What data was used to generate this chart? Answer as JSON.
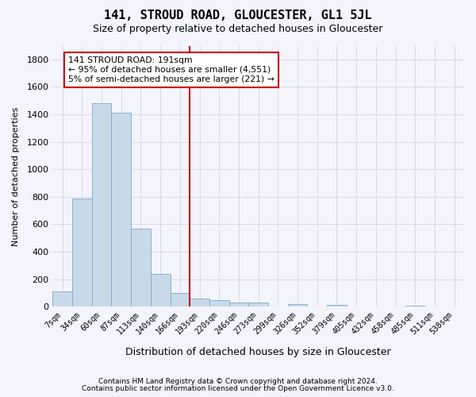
{
  "title": "141, STROUD ROAD, GLOUCESTER, GL1 5JL",
  "subtitle": "Size of property relative to detached houses in Gloucester",
  "xlabel": "Distribution of detached houses by size in Gloucester",
  "ylabel": "Number of detached properties",
  "bin_labels": [
    "7sqm",
    "34sqm",
    "60sqm",
    "87sqm",
    "113sqm",
    "140sqm",
    "166sqm",
    "193sqm",
    "220sqm",
    "246sqm",
    "273sqm",
    "299sqm",
    "326sqm",
    "352sqm",
    "379sqm",
    "405sqm",
    "432sqm",
    "458sqm",
    "485sqm",
    "511sqm",
    "538sqm"
  ],
  "bar_heights": [
    110,
    790,
    1480,
    1410,
    570,
    240,
    100,
    60,
    50,
    30,
    30,
    0,
    20,
    0,
    15,
    0,
    0,
    0,
    10,
    0,
    0
  ],
  "bar_color": "#c8daea",
  "bar_edge_color": "#7aaac8",
  "property_line_x": 7,
  "property_sqm": 191,
  "annotation_text": "141 STROUD ROAD: 191sqm\n← 95% of detached houses are smaller (4,551)\n5% of semi-detached houses are larger (221) →",
  "annotation_box_color": "#ffffff",
  "annotation_box_edge": "#cc0000",
  "vline_color": "#cc0000",
  "ylim": [
    0,
    1900
  ],
  "yticks": [
    0,
    200,
    400,
    600,
    800,
    1000,
    1200,
    1400,
    1600,
    1800
  ],
  "grid_color": "#d8d8e8",
  "bg_color": "#f4f4fc",
  "footer1": "Contains HM Land Registry data © Crown copyright and database right 2024.",
  "footer2": "Contains public sector information licensed under the Open Government Licence v3.0."
}
